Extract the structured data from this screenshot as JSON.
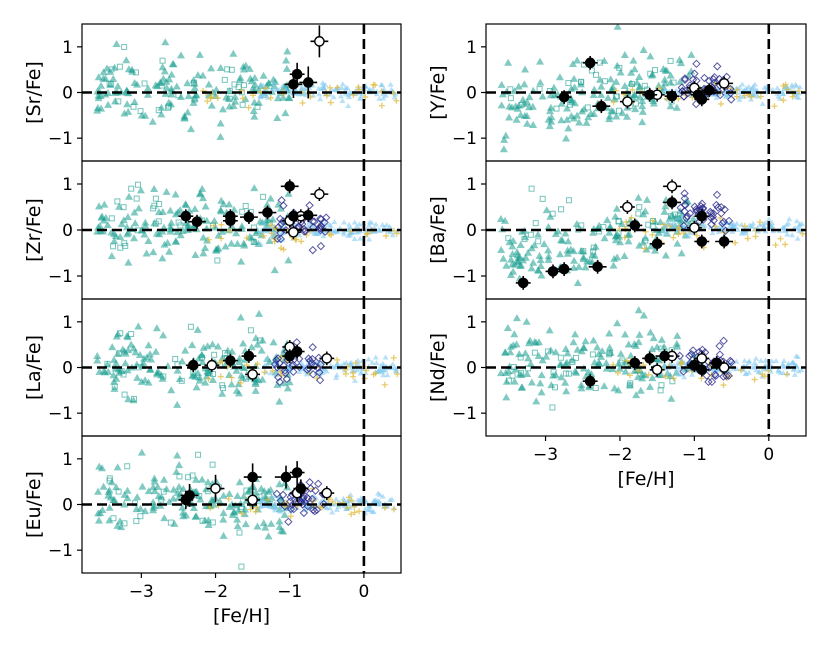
{
  "colors": {
    "teal": "#1a9e8f",
    "light_blue": "#7ec8f0",
    "gold": "#e0b93a",
    "navy": "#2c2c8c",
    "black": "#000000",
    "white": "#ffffff"
  },
  "chart_data": [
    {
      "type": "scatter",
      "panel": "Sr",
      "ylabel": "[Sr/Fe]",
      "xlabel": "",
      "xlim": [
        -3.8,
        0.5
      ],
      "ylim": [
        -1.5,
        1.5
      ],
      "xticks": [],
      "yticks": [
        -1,
        0,
        1
      ],
      "ytick_labels": [
        "−1",
        "0",
        "1"
      ],
      "filled_points": [
        {
          "x": -0.95,
          "y": 0.18,
          "xerr": 0.12,
          "yerr": 0.3
        },
        {
          "x": -0.9,
          "y": 0.4,
          "xerr": 0.1,
          "yerr": 0.25
        },
        {
          "x": -0.75,
          "y": 0.22,
          "xerr": 0.12,
          "yerr": 0.35
        }
      ],
      "open_points": [
        {
          "x": -0.6,
          "y": 1.12,
          "xerr": 0.12,
          "yerr": 0.35
        }
      ]
    },
    {
      "type": "scatter",
      "panel": "Zr",
      "ylabel": "[Zr/Fe]",
      "xlabel": "",
      "xlim": [
        -3.8,
        0.5
      ],
      "ylim": [
        -1.5,
        1.5
      ],
      "xticks": [],
      "yticks": [
        -1,
        0,
        1
      ],
      "ytick_labels": [
        "−1",
        "0",
        "1"
      ],
      "filled_points": [
        {
          "x": -2.4,
          "y": 0.3,
          "xerr": 0.1,
          "yerr": 0.15
        },
        {
          "x": -2.25,
          "y": 0.18,
          "xerr": 0.12,
          "yerr": 0.15
        },
        {
          "x": -1.8,
          "y": 0.2,
          "xerr": 0.1,
          "yerr": 0.15
        },
        {
          "x": -1.8,
          "y": 0.3,
          "xerr": 0.1,
          "yerr": 0.15
        },
        {
          "x": -1.55,
          "y": 0.28,
          "xerr": 0.12,
          "yerr": 0.15
        },
        {
          "x": -1.3,
          "y": 0.38,
          "xerr": 0.12,
          "yerr": 0.15
        },
        {
          "x": -1.0,
          "y": 0.95,
          "xerr": 0.12,
          "yerr": 0.15
        },
        {
          "x": -0.95,
          "y": 0.3,
          "xerr": 0.1,
          "yerr": 0.15
        },
        {
          "x": -0.75,
          "y": 0.32,
          "xerr": 0.12,
          "yerr": 0.15
        }
      ],
      "open_points": [
        {
          "x": -1.0,
          "y": 0.2,
          "xerr": 0.1,
          "yerr": 0.15
        },
        {
          "x": -0.95,
          "y": -0.05,
          "xerr": 0.1,
          "yerr": 0.15
        },
        {
          "x": -0.85,
          "y": 0.3,
          "xerr": 0.1,
          "yerr": 0.15
        },
        {
          "x": -0.6,
          "y": 0.78,
          "xerr": 0.12,
          "yerr": 0.15
        }
      ]
    },
    {
      "type": "scatter",
      "panel": "La",
      "ylabel": "[La/Fe]",
      "xlabel": "",
      "xlim": [
        -3.8,
        0.5
      ],
      "ylim": [
        -1.5,
        1.5
      ],
      "xticks": [],
      "yticks": [
        -1,
        0,
        1
      ],
      "ytick_labels": [
        "−1",
        "0",
        "1"
      ],
      "filled_points": [
        {
          "x": -2.3,
          "y": 0.05,
          "xerr": 0.1,
          "yerr": 0.15
        },
        {
          "x": -1.8,
          "y": 0.15,
          "xerr": 0.1,
          "yerr": 0.15
        },
        {
          "x": -1.55,
          "y": 0.25,
          "xerr": 0.1,
          "yerr": 0.15
        },
        {
          "x": -1.0,
          "y": 0.25,
          "xerr": 0.1,
          "yerr": 0.15
        },
        {
          "x": -0.9,
          "y": 0.35,
          "xerr": 0.1,
          "yerr": 0.15
        }
      ],
      "open_points": [
        {
          "x": -2.05,
          "y": 0.05,
          "xerr": 0.1,
          "yerr": 0.15
        },
        {
          "x": -1.5,
          "y": -0.15,
          "xerr": 0.1,
          "yerr": 0.15
        },
        {
          "x": -1.0,
          "y": 0.45,
          "xerr": 0.1,
          "yerr": 0.15
        },
        {
          "x": -0.5,
          "y": 0.2,
          "xerr": 0.1,
          "yerr": 0.15
        }
      ]
    },
    {
      "type": "scatter",
      "panel": "Eu",
      "ylabel": "[Eu/Fe]",
      "xlabel": "[Fe/H]",
      "xlim": [
        -3.8,
        0.5
      ],
      "ylim": [
        -1.5,
        1.5
      ],
      "xticks": [
        -3,
        -2,
        -1,
        0
      ],
      "xtick_labels": [
        "−3",
        "−2",
        "−1",
        "0"
      ],
      "yticks": [
        -1,
        0,
        1
      ],
      "ytick_labels": [
        "−1",
        "0",
        "1"
      ],
      "filled_points": [
        {
          "x": -2.4,
          "y": 0.1,
          "xerr": 0.1,
          "yerr": 0.2
        },
        {
          "x": -2.35,
          "y": 0.2,
          "xerr": 0.12,
          "yerr": 0.25
        },
        {
          "x": -1.5,
          "y": 0.6,
          "xerr": 0.12,
          "yerr": 0.3
        },
        {
          "x": -1.05,
          "y": 0.6,
          "xerr": 0.15,
          "yerr": 0.25
        },
        {
          "x": -0.9,
          "y": 0.7,
          "xerr": 0.1,
          "yerr": 0.25
        },
        {
          "x": -0.85,
          "y": 0.35,
          "xerr": 0.1,
          "yerr": 0.2
        }
      ],
      "open_points": [
        {
          "x": -2.0,
          "y": 0.35,
          "xerr": 0.12,
          "yerr": 0.3
        },
        {
          "x": -1.5,
          "y": 0.1,
          "xerr": 0.1,
          "yerr": 0.2
        },
        {
          "x": -0.9,
          "y": 0.25,
          "xerr": 0.1,
          "yerr": 0.2
        },
        {
          "x": -0.5,
          "y": 0.25,
          "xerr": 0.1,
          "yerr": 0.15
        }
      ]
    },
    {
      "type": "scatter",
      "panel": "Y",
      "ylabel": "[Y/Fe]",
      "xlabel": "",
      "xlim": [
        -3.8,
        0.5
      ],
      "ylim": [
        -1.5,
        1.5
      ],
      "xticks": [],
      "yticks": [
        -1,
        0,
        1
      ],
      "ytick_labels": [
        "−1",
        "0",
        "1"
      ],
      "filled_points": [
        {
          "x": -2.4,
          "y": 0.65,
          "xerr": 0.1,
          "yerr": 0.15
        },
        {
          "x": -2.75,
          "y": -0.1,
          "xerr": 0.1,
          "yerr": 0.15
        },
        {
          "x": -2.25,
          "y": -0.3,
          "xerr": 0.12,
          "yerr": 0.15
        },
        {
          "x": -1.6,
          "y": -0.05,
          "xerr": 0.1,
          "yerr": 0.15
        },
        {
          "x": -1.3,
          "y": -0.08,
          "xerr": 0.1,
          "yerr": 0.15
        },
        {
          "x": -0.95,
          "y": -0.05,
          "xerr": 0.1,
          "yerr": 0.15
        },
        {
          "x": -0.9,
          "y": -0.15,
          "xerr": 0.1,
          "yerr": 0.15
        },
        {
          "x": -0.8,
          "y": 0.05,
          "xerr": 0.1,
          "yerr": 0.15
        }
      ],
      "open_points": [
        {
          "x": -1.9,
          "y": -0.2,
          "xerr": 0.1,
          "yerr": 0.15
        },
        {
          "x": -1.5,
          "y": -0.05,
          "xerr": 0.1,
          "yerr": 0.15
        },
        {
          "x": -1.0,
          "y": 0.1,
          "xerr": 0.1,
          "yerr": 0.15
        },
        {
          "x": -0.6,
          "y": 0.2,
          "xerr": 0.12,
          "yerr": 0.15
        }
      ]
    },
    {
      "type": "scatter",
      "panel": "Ba",
      "ylabel": "[Ba/Fe]",
      "xlabel": "",
      "xlim": [
        -3.8,
        0.5
      ],
      "ylim": [
        -1.5,
        1.5
      ],
      "xticks": [],
      "yticks": [
        -1,
        0,
        1
      ],
      "ytick_labels": [
        "−1",
        "0",
        "1"
      ],
      "filled_points": [
        {
          "x": -3.3,
          "y": -1.15,
          "xerr": 0.1,
          "yerr": 0.15
        },
        {
          "x": -2.9,
          "y": -0.9,
          "xerr": 0.1,
          "yerr": 0.15
        },
        {
          "x": -2.75,
          "y": -0.85,
          "xerr": 0.1,
          "yerr": 0.15
        },
        {
          "x": -2.3,
          "y": -0.8,
          "xerr": 0.12,
          "yerr": 0.15
        },
        {
          "x": -1.8,
          "y": 0.1,
          "xerr": 0.1,
          "yerr": 0.15
        },
        {
          "x": -1.5,
          "y": -0.3,
          "xerr": 0.1,
          "yerr": 0.15
        },
        {
          "x": -1.3,
          "y": 0.6,
          "xerr": 0.12,
          "yerr": 0.15
        },
        {
          "x": -0.9,
          "y": -0.25,
          "xerr": 0.1,
          "yerr": 0.15
        },
        {
          "x": -0.9,
          "y": 0.3,
          "xerr": 0.1,
          "yerr": 0.15
        },
        {
          "x": -0.6,
          "y": -0.25,
          "xerr": 0.12,
          "yerr": 0.15
        }
      ],
      "open_points": [
        {
          "x": -1.9,
          "y": 0.5,
          "xerr": 0.1,
          "yerr": 0.15
        },
        {
          "x": -1.3,
          "y": 0.95,
          "xerr": 0.12,
          "yerr": 0.15
        },
        {
          "x": -1.0,
          "y": 0.05,
          "xerr": 0.1,
          "yerr": 0.15
        }
      ]
    },
    {
      "type": "scatter",
      "panel": "Nd",
      "ylabel": "[Nd/Fe]",
      "xlabel": "[Fe/H]",
      "xlim": [
        -3.8,
        0.5
      ],
      "ylim": [
        -1.5,
        1.5
      ],
      "xticks": [
        -3,
        -2,
        -1,
        0
      ],
      "xtick_labels": [
        "−3",
        "−2",
        "−1",
        "0"
      ],
      "yticks": [
        -1,
        0,
        1
      ],
      "ytick_labels": [
        "−1",
        "0",
        "1"
      ],
      "filled_points": [
        {
          "x": -2.4,
          "y": -0.3,
          "xerr": 0.1,
          "yerr": 0.15
        },
        {
          "x": -1.8,
          "y": 0.1,
          "xerr": 0.1,
          "yerr": 0.15
        },
        {
          "x": -1.6,
          "y": 0.2,
          "xerr": 0.1,
          "yerr": 0.15
        },
        {
          "x": -1.4,
          "y": 0.25,
          "xerr": 0.12,
          "yerr": 0.15
        },
        {
          "x": -1.0,
          "y": 0.05,
          "xerr": 0.1,
          "yerr": 0.15
        },
        {
          "x": -0.9,
          "y": -0.05,
          "xerr": 0.1,
          "yerr": 0.15
        },
        {
          "x": -0.7,
          "y": 0.1,
          "xerr": 0.1,
          "yerr": 0.15
        }
      ],
      "open_points": [
        {
          "x": -1.5,
          "y": -0.05,
          "xerr": 0.1,
          "yerr": 0.15
        },
        {
          "x": -1.3,
          "y": 0.25,
          "xerr": 0.1,
          "yerr": 0.15
        },
        {
          "x": -0.9,
          "y": 0.2,
          "xerr": 0.1,
          "yerr": 0.15
        },
        {
          "x": -0.6,
          "y": 0.0,
          "xerr": 0.1,
          "yerr": 0.15
        }
      ]
    }
  ]
}
